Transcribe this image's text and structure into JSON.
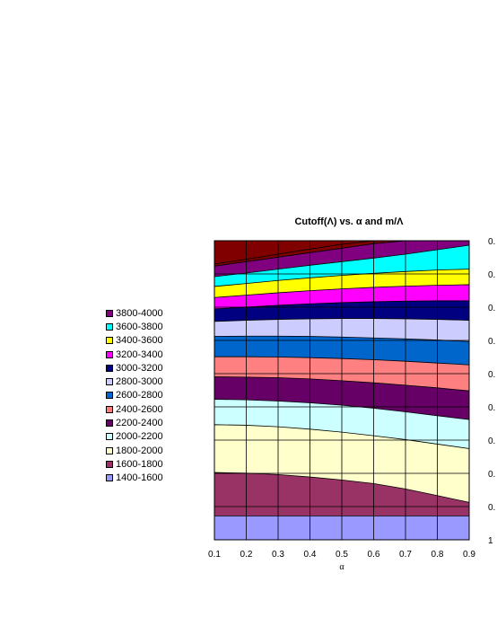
{
  "chart_data": {
    "type": "contour",
    "title": "Cutoff(Λ) vs. α and m/Λ",
    "xlabel": "α",
    "ylabel": "",
    "x_ticks": [
      "0.1",
      "0.2",
      "0.3",
      "0.4",
      "0.5",
      "0.6",
      "0.7",
      "0.8",
      "0.9"
    ],
    "y_ticks": [
      "1",
      "0.",
      "0.",
      "0.",
      "0.",
      "0.",
      "0.",
      "0.",
      "0.",
      "0."
    ],
    "xlim": [
      0.1,
      0.9
    ],
    "legend_position": "left",
    "x": [
      0.1,
      0.2,
      0.3,
      0.4,
      0.5,
      0.6,
      0.7,
      0.8,
      0.9
    ],
    "series": [
      {
        "name": "1400-1600",
        "color": "#9999ff",
        "upper": [
          0.92,
          0.92,
          0.92,
          0.92,
          0.92,
          0.92,
          0.92,
          0.92,
          0.92
        ]
      },
      {
        "name": "1600-1800",
        "color": "#993366",
        "upper": [
          0.775,
          0.777,
          0.782,
          0.79,
          0.8,
          0.812,
          0.83,
          0.852,
          0.875
        ]
      },
      {
        "name": "1800-2000",
        "color": "#ffffcc",
        "upper": [
          0.615,
          0.617,
          0.622,
          0.63,
          0.64,
          0.652,
          0.665,
          0.68,
          0.695
        ]
      },
      {
        "name": "2000-2200",
        "color": "#ccffff",
        "upper": [
          0.53,
          0.532,
          0.536,
          0.542,
          0.55,
          0.56,
          0.572,
          0.585,
          0.598
        ]
      },
      {
        "name": "2200-2400",
        "color": "#660066",
        "upper": [
          0.455,
          0.456,
          0.458,
          0.462,
          0.468,
          0.475,
          0.483,
          0.492,
          0.502
        ]
      },
      {
        "name": "2400-2600",
        "color": "#ff8080",
        "upper": [
          0.388,
          0.388,
          0.389,
          0.391,
          0.394,
          0.398,
          0.403,
          0.409,
          0.415
        ]
      },
      {
        "name": "2600-2800",
        "color": "#0066cc",
        "upper": [
          0.32,
          0.319,
          0.319,
          0.32,
          0.322,
          0.325,
          0.328,
          0.332,
          0.337
        ]
      },
      {
        "name": "2800-3000",
        "color": "#ccccff",
        "upper": [
          0.27,
          0.266,
          0.263,
          0.261,
          0.26,
          0.26,
          0.261,
          0.263,
          0.266
        ]
      },
      {
        "name": "3000-3200",
        "color": "#000080",
        "upper": [
          0.228,
          0.222,
          0.216,
          0.211,
          0.207,
          0.204,
          0.202,
          0.201,
          0.201
        ]
      },
      {
        "name": "3200-3400",
        "color": "#ff00ff",
        "upper": [
          0.19,
          0.182,
          0.174,
          0.167,
          0.161,
          0.156,
          0.152,
          0.149,
          0.147
        ]
      },
      {
        "name": "3400-3600",
        "color": "#ffff00",
        "upper": [
          0.153,
          0.143,
          0.133,
          0.124,
          0.116,
          0.109,
          0.103,
          0.098,
          0.095
        ]
      },
      {
        "name": "3600-3800",
        "color": "#00ffff",
        "upper": [
          0.12,
          0.108,
          0.095,
          0.082,
          0.07,
          0.058,
          0.045,
          0.03,
          0.015
        ]
      },
      {
        "name": "3800-4000",
        "color": "#800080",
        "upper": [
          0.085,
          0.07,
          0.055,
          0.04,
          0.025,
          0.01,
          0.0,
          0.0,
          0.0
        ]
      }
    ],
    "top_region": {
      "color": "#800000",
      "boundary": [
        0.078,
        0.062,
        0.045,
        0.028,
        0.012,
        0.0,
        0.0,
        0.0,
        0.0
      ]
    },
    "legend_order": [
      "3800-4000",
      "3600-3800",
      "3400-3600",
      "3200-3400",
      "3000-3200",
      "2800-3000",
      "2600-2800",
      "2400-2600",
      "2200-2400",
      "2000-2200",
      "1800-2000",
      "1600-1800",
      "1400-1600"
    ]
  }
}
